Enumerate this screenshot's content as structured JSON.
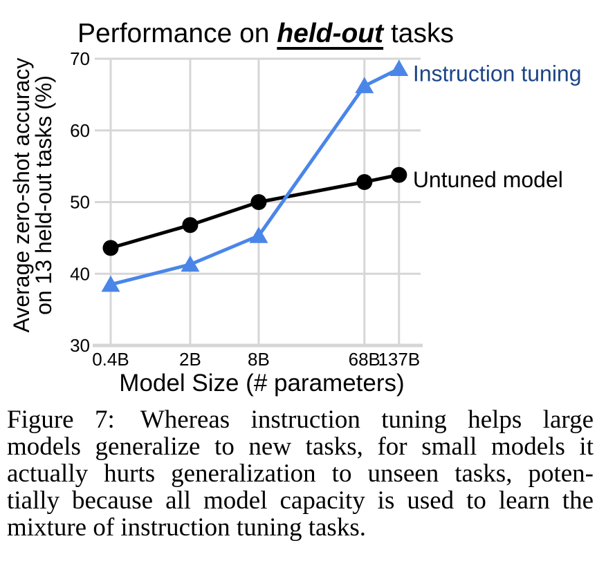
{
  "figure": {
    "title": {
      "prefix": "Performance on ",
      "emphasis": "held-out",
      "suffix": " tasks"
    },
    "caption_lines": [
      "Figure 7: Whereas instruction tuning helps large",
      "models generalize to new tasks, for small models it",
      "actually hurts generalization to unseen tasks, poten-",
      "tially because all model capacity is used to learn the",
      "mixture of instruction tuning tasks."
    ]
  },
  "chart_data": {
    "type": "line",
    "title": "Performance on held-out tasks",
    "xlabel": "Model Size (# parameters)",
    "ylabel_lines": [
      "Average zero-shot accuracy",
      "on 13 held-out tasks (%)"
    ],
    "x_categories": [
      "0.4B",
      "2B",
      "8B",
      "68B",
      "137B"
    ],
    "x_values": [
      0.4,
      2,
      8,
      68,
      137
    ],
    "x_scale": "log",
    "x_range": [
      0.29,
      212
    ],
    "ylim": [
      30,
      70
    ],
    "y_ticks": [
      30,
      40,
      50,
      60,
      70
    ],
    "grid": true,
    "legend_position": "right-of-last-point",
    "series": [
      {
        "name": "Untuned model",
        "values": [
          43.6,
          46.8,
          50.0,
          52.8,
          53.8
        ],
        "color": "#000000",
        "label_color": "#000000",
        "marker": "circle"
      },
      {
        "name": "Instruction tuning",
        "values": [
          38.5,
          41.3,
          45.3,
          66.2,
          68.6
        ],
        "color": "#4a86e8",
        "label_color": "#1c4587",
        "marker": "triangle"
      }
    ],
    "colors": {
      "gridline": "#d6d6d6",
      "axis": "#d6d6d6",
      "text": "#000000"
    }
  }
}
